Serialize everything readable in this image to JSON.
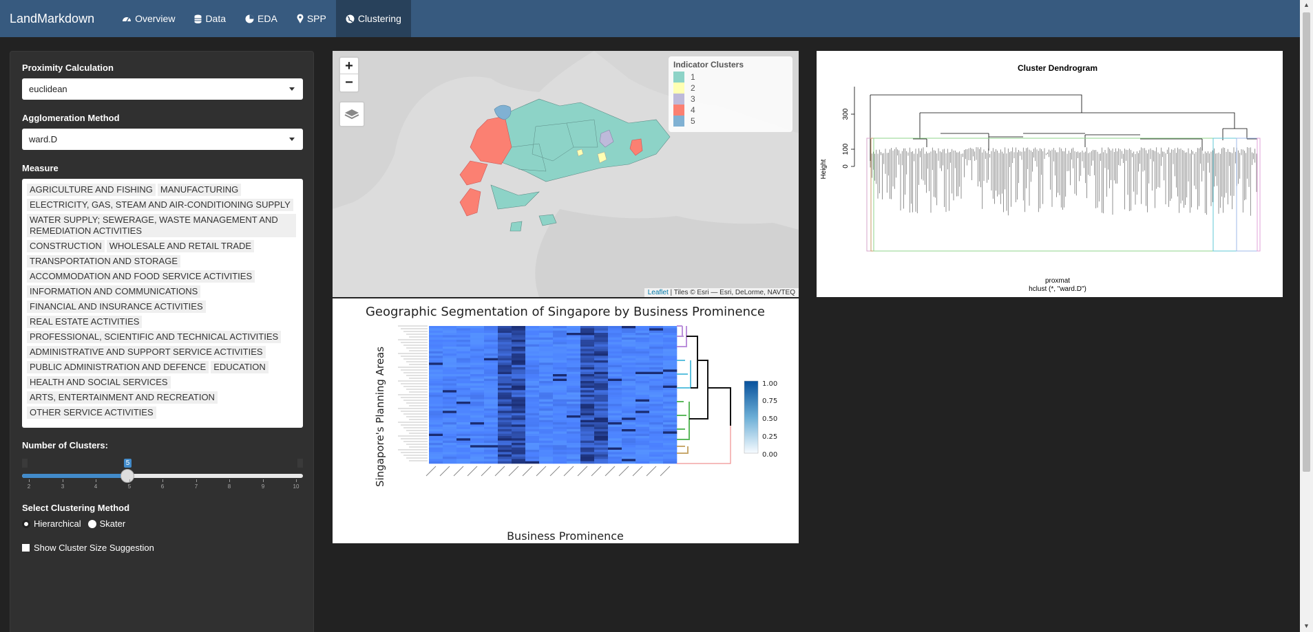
{
  "app": {
    "brand": "LandMarkdown"
  },
  "nav": [
    {
      "label": "Overview",
      "icon": "dashboard-icon",
      "active": false
    },
    {
      "label": "Data",
      "icon": "database-icon",
      "active": false
    },
    {
      "label": "EDA",
      "icon": "pie-chart-icon",
      "active": false
    },
    {
      "label": "SPP",
      "icon": "map-marker-icon",
      "active": false
    },
    {
      "label": "Clustering",
      "icon": "globe-icon",
      "active": true
    }
  ],
  "sidebar": {
    "proximity": {
      "label": "Proximity Calculation",
      "value": "euclidean"
    },
    "agglomeration": {
      "label": "Agglomeration Method",
      "value": "ward.D"
    },
    "measure": {
      "label": "Measure",
      "items": [
        "AGRICULTURE AND FISHING",
        "MANUFACTURING",
        "ELECTRICITY, GAS, STEAM AND AIR-CONDITIONING SUPPLY",
        "WATER SUPPLY; SEWERAGE, WASTE MANAGEMENT AND REMEDIATION ACTIVITIES",
        "CONSTRUCTION",
        "WHOLESALE AND RETAIL TRADE",
        "TRANSPORTATION AND STORAGE",
        "ACCOMMODATION AND FOOD SERVICE ACTIVITIES",
        "INFORMATION AND COMMUNICATIONS",
        "FINANCIAL AND INSURANCE ACTIVITIES",
        "REAL ESTATE ACTIVITIES",
        "PROFESSIONAL, SCIENTIFIC AND TECHNICAL ACTIVITIES",
        "ADMINISTRATIVE AND SUPPORT SERVICE ACTIVITIES",
        "PUBLIC ADMINISTRATION AND DEFENCE",
        "EDUCATION",
        "HEALTH AND SOCIAL SERVICES",
        "ARTS, ENTERTAINMENT AND RECREATION",
        "OTHER SERVICE ACTIVITIES"
      ]
    },
    "clusters": {
      "label": "Number of Clusters:",
      "value": 5,
      "min": 2,
      "max": 10,
      "ticks": [
        "2",
        "3",
        "4",
        "5",
        "6",
        "7",
        "8",
        "9",
        "10"
      ],
      "value_label": "5"
    },
    "method": {
      "label": "Select Clustering Method",
      "options": [
        "Hierarchical",
        "Skater"
      ],
      "selected": "Hierarchical"
    },
    "suggestion": {
      "label": "Show Cluster Size Suggestion",
      "checked": false
    }
  },
  "map": {
    "zoom_in": "+",
    "zoom_out": "−",
    "legend_title": "Indicator Clusters",
    "legend": [
      {
        "label": "1",
        "color": "#8dd3c7"
      },
      {
        "label": "2",
        "color": "#ffffb3"
      },
      {
        "label": "3",
        "color": "#bebada"
      },
      {
        "label": "4",
        "color": "#fb8072"
      },
      {
        "label": "5",
        "color": "#80b1d3"
      }
    ],
    "attribution_link": "Leaflet",
    "attribution_text": " | Tiles © Esri — Esri, DeLorme, NAVTEQ"
  },
  "heatmap": {
    "title": "Geographic Segmentation of Singapore by Business Prominence",
    "xlabel": "Business Prominence",
    "ylabel": "Singapore's Planning Areas",
    "colorbar": [
      "1.00",
      "0.75",
      "0.50",
      "0.25",
      "0.00"
    ]
  },
  "dendrogram": {
    "title": "Cluster Dendrogram",
    "ylabel": "Height",
    "yticks": [
      "300",
      "100",
      "0"
    ],
    "xlabel": "proxmat",
    "sub": "hclust (*, \"ward.D\")"
  }
}
